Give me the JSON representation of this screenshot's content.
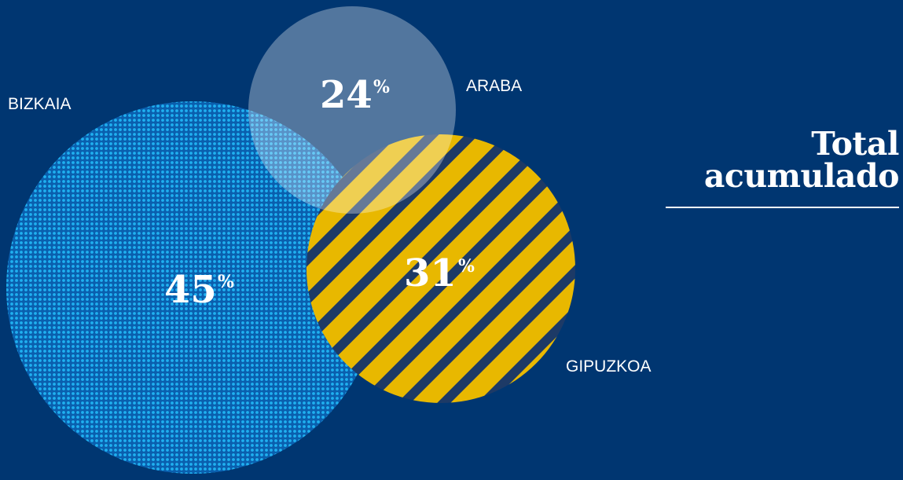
{
  "chart_data": {
    "type": "venn",
    "title_lines": [
      "Total",
      "acumulado"
    ],
    "sets": [
      {
        "name": "BIZKAIA",
        "value": 45,
        "label": "45",
        "unit": "%",
        "color": "#1aa3e8",
        "pattern": "dots"
      },
      {
        "name": "ARABA",
        "value": 24,
        "label": "24",
        "unit": "%",
        "color": "#5a6472",
        "pattern": "solid"
      },
      {
        "name": "GIPUZKOA",
        "value": 31,
        "label": "31",
        "unit": "%",
        "color": "#e8b800",
        "pattern": "stripes"
      }
    ]
  },
  "colors": {
    "background": "#003671",
    "stripe_gap": "#1d3a66",
    "text": "#ffffff"
  }
}
